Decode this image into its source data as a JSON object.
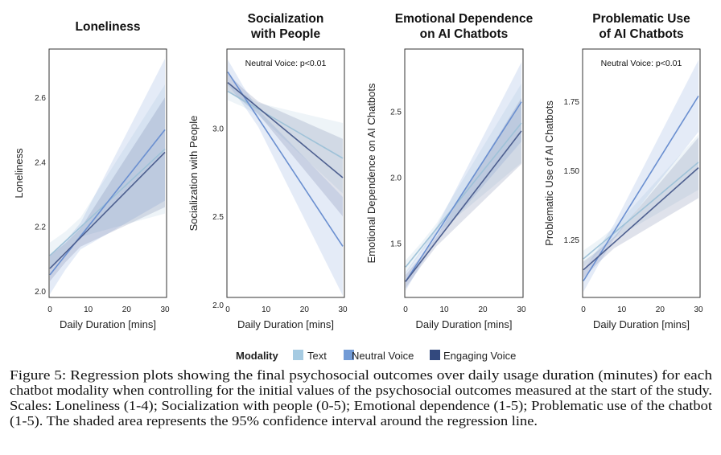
{
  "chart_data": [
    {
      "type": "line",
      "title": [
        "Loneliness"
      ],
      "xlabel": "Daily Duration [mins]",
      "ylabel": "Loneliness",
      "xlim": [
        0,
        30
      ],
      "ylim": [
        1.98,
        2.75
      ],
      "xticks": [
        "0",
        "10",
        "20",
        "30"
      ],
      "yticks": [
        2.0,
        2.2,
        2.4,
        2.6
      ],
      "ytick_labels": [
        "2.0",
        "2.2",
        "2.4",
        "2.6"
      ],
      "annotation": "",
      "series": [
        {
          "name": "Text",
          "x": [
            0,
            30
          ],
          "y": [
            2.11,
            2.44
          ],
          "ci_halfwidth": [
            0.04,
            0.2
          ]
        },
        {
          "name": "Neutral Voice",
          "x": [
            0,
            30
          ],
          "y": [
            2.05,
            2.5
          ],
          "ci_halfwidth": [
            0.06,
            0.22
          ]
        },
        {
          "name": "Engaging Voice",
          "x": [
            0,
            30
          ],
          "y": [
            2.07,
            2.43
          ],
          "ci_halfwidth": [
            0.04,
            0.17
          ]
        }
      ]
    },
    {
      "type": "line",
      "title": [
        "Socialization",
        "with People"
      ],
      "xlabel": "Daily Duration [mins]",
      "ylabel": "Socialization with People",
      "xlim": [
        0,
        30
      ],
      "ylim": [
        2.04,
        3.45
      ],
      "xticks": [
        "0",
        "10",
        "20",
        "30"
      ],
      "yticks": [
        2.0,
        2.5,
        3.0
      ],
      "ytick_labels": [
        "2.0",
        "2.5",
        "3.0"
      ],
      "annotation": "Neutral Voice: p<0.01",
      "series": [
        {
          "name": "Text",
          "x": [
            0,
            30
          ],
          "y": [
            3.21,
            2.83
          ],
          "ci_halfwidth": [
            0.05,
            0.2
          ]
        },
        {
          "name": "Neutral Voice",
          "x": [
            0,
            30
          ],
          "y": [
            3.32,
            2.33
          ],
          "ci_halfwidth": [
            0.07,
            0.28
          ]
        },
        {
          "name": "Engaging Voice",
          "x": [
            0,
            30
          ],
          "y": [
            3.26,
            2.72
          ],
          "ci_halfwidth": [
            0.05,
            0.22
          ]
        }
      ]
    },
    {
      "type": "line",
      "title": [
        "Emotional Dependence",
        "on AI Chatbots"
      ],
      "xlabel": "Daily Duration [mins]",
      "ylabel": "Emotional Dependence on AI Chatbots",
      "xlim": [
        0,
        30
      ],
      "ylim": [
        1.09,
        2.97
      ],
      "xticks": [
        "0",
        "10",
        "20",
        "30"
      ],
      "yticks": [
        1.5,
        2.0,
        2.5
      ],
      "ytick_labels": [
        "1.5",
        "2.0",
        "2.5"
      ],
      "annotation": "",
      "series": [
        {
          "name": "Text",
          "x": [
            0,
            30
          ],
          "y": [
            1.32,
            2.41
          ],
          "ci_halfwidth": [
            0.05,
            0.3
          ]
        },
        {
          "name": "Neutral Voice",
          "x": [
            0,
            30
          ],
          "y": [
            1.21,
            2.57
          ],
          "ci_halfwidth": [
            0.07,
            0.3
          ]
        },
        {
          "name": "Engaging Voice",
          "x": [
            0,
            30
          ],
          "y": [
            1.21,
            2.35
          ],
          "ci_halfwidth": [
            0.05,
            0.25
          ]
        }
      ]
    },
    {
      "type": "line",
      "title": [
        "Problematic Use",
        "of AI Chatbots"
      ],
      "xlabel": "Daily Duration [mins]",
      "ylabel": "Problematic Use of AI Chatbots",
      "xlim": [
        0,
        30
      ],
      "ylim": [
        1.04,
        1.94
      ],
      "xticks": [
        "0",
        "10",
        "20",
        "30"
      ],
      "yticks": [
        1.25,
        1.5,
        1.75
      ],
      "ytick_labels": [
        "1.25",
        "1.50",
        "1.75"
      ],
      "annotation": "Neutral Voice: p<0.01",
      "series": [
        {
          "name": "Text",
          "x": [
            0,
            30
          ],
          "y": [
            1.18,
            1.53
          ],
          "ci_halfwidth": [
            0.03,
            0.1
          ]
        },
        {
          "name": "Neutral Voice",
          "x": [
            0,
            30
          ],
          "y": [
            1.1,
            1.77
          ],
          "ci_halfwidth": [
            0.04,
            0.13
          ]
        },
        {
          "name": "Engaging Voice",
          "x": [
            0,
            30
          ],
          "y": [
            1.14,
            1.51
          ],
          "ci_halfwidth": [
            0.03,
            0.11
          ]
        }
      ]
    }
  ],
  "legend": {
    "title": "Modality",
    "items": [
      {
        "label": "Text",
        "color": "#a6cbe2"
      },
      {
        "label": "Neutral Voice",
        "color": "#729bd6"
      },
      {
        "label": "Engaging Voice",
        "color": "#33497e"
      }
    ]
  },
  "series_colors": {
    "Text": "#9fc2d8",
    "Neutral Voice": "#6a8fd0",
    "Engaging Voice": "#4d5f8f"
  },
  "caption": [
    "Figure 5: Regression plots showing the final psychosocial outcomes over daily usage duration (minutes) for each",
    "chatbot modality when controlling for the initial values of the psychosocial outcomes measured at the start of the study.",
    "Scales: Loneliness (1-4); Socialization with people (0-5); Emotional dependence (1-5); Problematic use of the chatbot",
    "(1-5). The shaded area represents the 95% confidence interval around the regression line."
  ]
}
